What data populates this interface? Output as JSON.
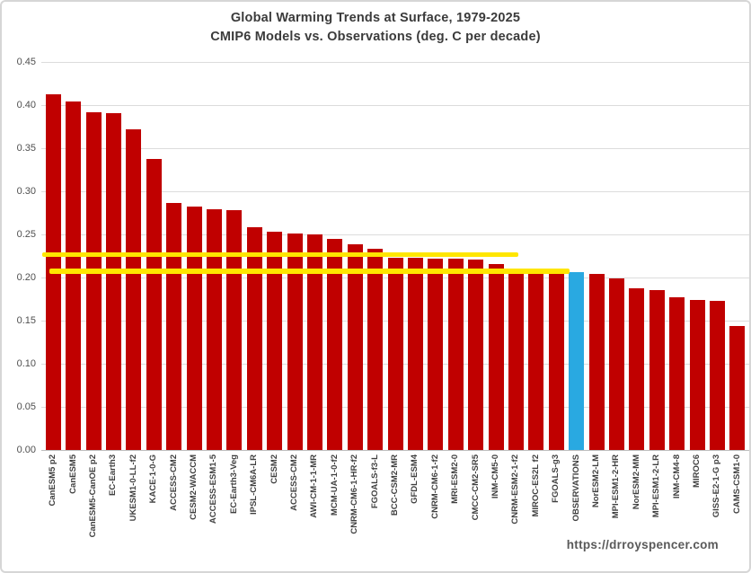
{
  "title": {
    "line1": "Global Warming Trends at Surface, 1979-2025",
    "line2": "CMIP6 Models vs. Observations (deg. C per decade)"
  },
  "watermark": "https://drroyspencer.com",
  "chart_data": {
    "type": "bar",
    "title": "Global Warming Trends at Surface, 1979-2025",
    "subtitle": "CMIP6 Models vs. Observations (deg. C per decade)",
    "xlabel": "",
    "ylabel": "",
    "units": "deg. C per decade",
    "ylim": [
      0,
      0.45
    ],
    "ytick_step": 0.05,
    "yticks": [
      "0.00",
      "0.05",
      "0.10",
      "0.15",
      "0.20",
      "0.25",
      "0.30",
      "0.35",
      "0.40",
      "0.45"
    ],
    "grid": true,
    "legend": "none",
    "categories": [
      "CanESM5 p2",
      "CanESM5",
      "CanESM5-CanOE p2",
      "EC-Earth3",
      "UKESM1-0-LL-f2",
      "KACE-1-0-G",
      "ACCESS-CM2",
      "CESM2-WACCM",
      "ACCESS-ESM1-5",
      "EC-Earth3-Veg",
      "IPSL-CM6A-LR",
      "CESM2",
      "ACCESS-CM2",
      "AWI-CM-1-1-MR",
      "MCM-UA-1-0-f2",
      "CNRM-CM6-1-HR-f2",
      "FGOALS-f3-L",
      "BCC-CSM2-MR",
      "GFDL-ESM4",
      "CNRM-CM6-1-f2",
      "MRI-ESM2-0",
      "CMCC-CM2-SR5",
      "INM-CM5-0",
      "CNRM-ESM2-1-f2",
      "MIROC-ES2L f2",
      "FGOALS-g3",
      "OBSERVATIONS",
      "NorESM2-LM",
      "MPI-ESM1-2-HR",
      "NorESM2-MM",
      "MPI-ESM1-2-LR",
      "INM-CM4-8",
      "MIROC6",
      "GISS-E2-1-G p3",
      "CAMS-CSM1-0"
    ],
    "values": [
      0.412,
      0.404,
      0.392,
      0.391,
      0.372,
      0.338,
      0.286,
      0.282,
      0.279,
      0.278,
      0.258,
      0.253,
      0.251,
      0.25,
      0.245,
      0.239,
      0.233,
      0.223,
      0.2225,
      0.222,
      0.2215,
      0.221,
      0.216,
      0.21,
      0.209,
      0.208,
      0.2065,
      0.2045,
      0.199,
      0.188,
      0.185,
      0.177,
      0.174,
      0.173,
      0.144
    ],
    "observation_index": 26,
    "colors": {
      "model_bar": "#C00000",
      "observation_bar": "#29A9E1",
      "reference_line": "#FFE600",
      "gridline": "#DCDCDC",
      "text": "#3F3F3F"
    },
    "reference_lines": [
      {
        "value": 0.2265,
        "from_bar": -0.55,
        "to_bar": 23.1,
        "thickness": 5,
        "color": "#FFE600"
      },
      {
        "value": 0.2068,
        "from_bar": -0.2,
        "to_bar": 25.68,
        "thickness": 6,
        "color": "#FFE600"
      }
    ]
  }
}
